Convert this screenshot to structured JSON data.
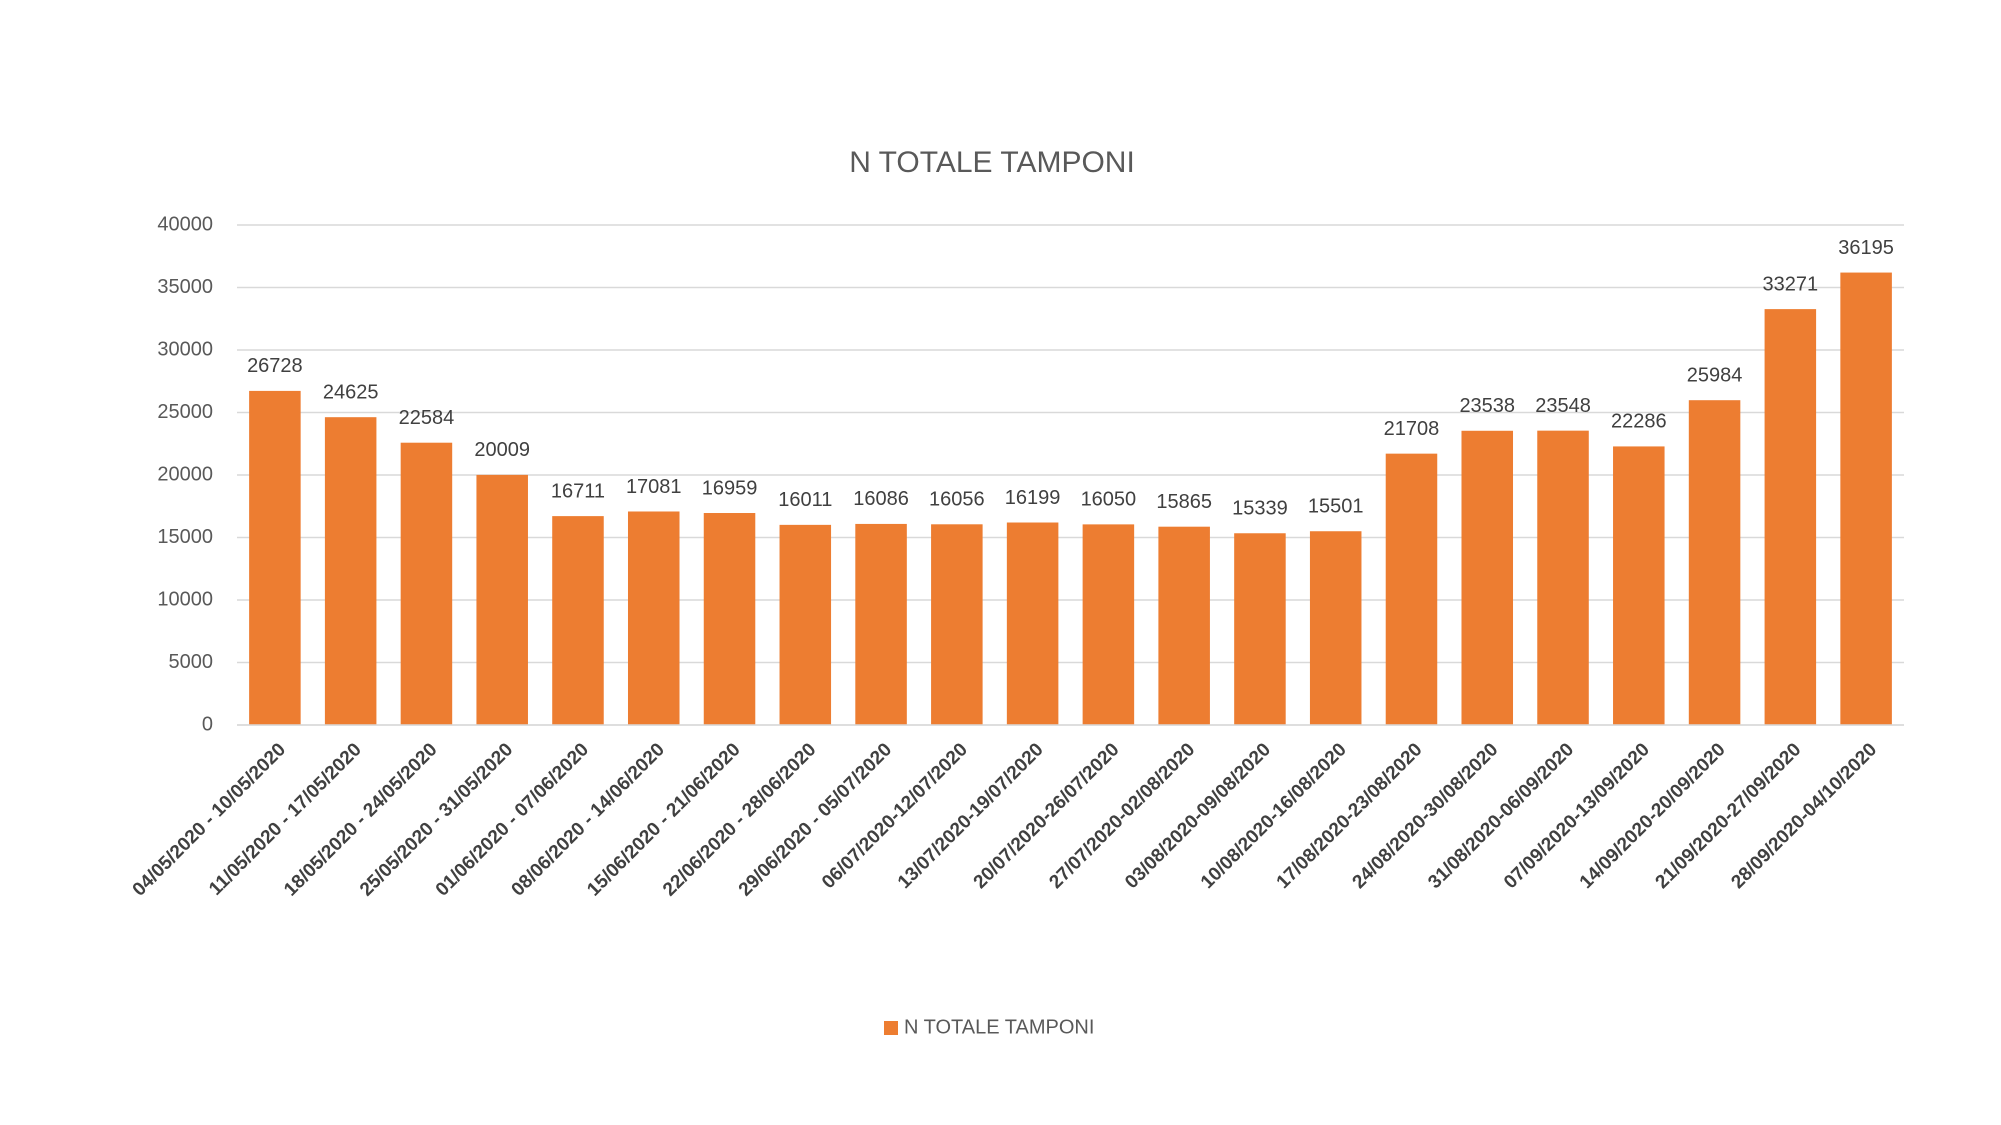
{
  "chart_data": {
    "type": "bar",
    "title": "N TOTALE TAMPONI",
    "categories": [
      "04/05/2020 - 10/05/2020",
      "11/05/2020 - 17/05/2020",
      "18/05/2020 - 24/05/2020",
      "25/05/2020 - 31/05/2020",
      "01/06/2020 - 07/06/2020",
      "08/06/2020 - 14/06/2020",
      "15/06/2020 - 21/06/2020",
      "22/06/2020 - 28/06/2020",
      "29/06/2020 - 05/07/2020",
      "06/07/2020-12/07/2020",
      "13/07/2020-19/07/2020",
      "20/07/2020-26/07/2020",
      "27/07/2020-02/08/2020",
      "03/08/2020-09/08/2020",
      "10/08/2020-16/08/2020",
      "17/08/2020-23/08/2020",
      "24/08/2020-30/08/2020",
      "31/08/2020-06/09/2020",
      "07/09/2020-13/09/2020",
      "14/09/2020-20/09/2020",
      "21/09/2020-27/09/2020",
      "28/09/2020-04/10/2020"
    ],
    "series": [
      {
        "name": "N TOTALE TAMPONI",
        "color": "#ed7d31",
        "values": [
          26728,
          24625,
          22584,
          20009,
          16711,
          17081,
          16959,
          16011,
          16086,
          16056,
          16199,
          16050,
          15865,
          15339,
          15501,
          21708,
          23538,
          23548,
          22286,
          25984,
          33271,
          36195
        ]
      }
    ],
    "ylim": [
      0,
      40000
    ],
    "yticks": [
      0,
      5000,
      10000,
      15000,
      20000,
      25000,
      30000,
      35000,
      40000
    ],
    "grid": true,
    "legend": "bottom"
  }
}
